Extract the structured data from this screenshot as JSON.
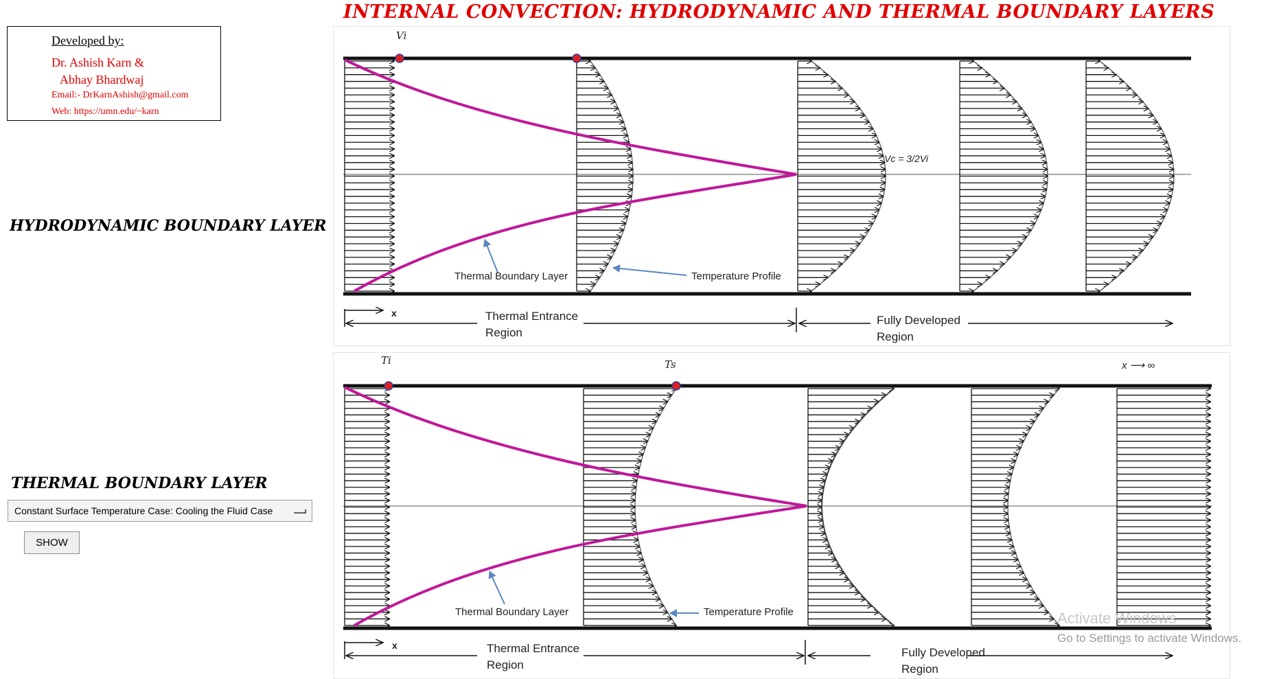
{
  "title": "INTERNAL CONVECTION: HYDRODYNAMIC AND THERMAL BOUNDARY LAYERS",
  "credits": {
    "developed_by": "Developed by:",
    "author1": "Dr. Ashish Karn &",
    "author2": "Abhay Bhardwaj",
    "email": "Email:- DrKarnAshish@gmail.com",
    "web": "Web: https://umn.edu/~karn"
  },
  "sections": {
    "hydrodynamic_label": "HYDRODYNAMIC BOUNDARY LAYER",
    "thermal_label": "THERMAL BOUNDARY LAYER"
  },
  "controls": {
    "case_select_value": "Constant Surface Temperature Case: Cooling the Fluid Case",
    "show_button": "SHOW"
  },
  "top_diagram": {
    "inlet_symbol": "Vi",
    "centerline_velocity": "Vc = 3/2Vi",
    "boundary_layer_label": "Thermal Boundary Layer",
    "profile_label": "Temperature Profile",
    "x_label": "x",
    "entrance_label_line1": "Thermal Entrance",
    "entrance_label_line2": "Region",
    "developed_label_line1": "Fully Developed",
    "developed_label_line2": "Region"
  },
  "bottom_diagram": {
    "inlet_symbol": "Ti",
    "surface_symbol": "Ts",
    "x_infinity": "x ⟶ ∞",
    "boundary_layer_label": "Thermal Boundary Layer",
    "profile_label": "Temperature Profile",
    "x_label": "x",
    "entrance_label_line1": "Thermal Entrance",
    "entrance_label_line2": "Region",
    "developed_label_line1": "Fully Developed",
    "developed_label_line2": "Region"
  },
  "watermark": {
    "line1": "Activate Windows",
    "line2": "Go to Settings to activate Windows."
  },
  "colors": {
    "title": "#e00000",
    "boundary_layer": "#c0189a",
    "annotation_arrow": "#5b87c0",
    "marker": "#e02020"
  }
}
